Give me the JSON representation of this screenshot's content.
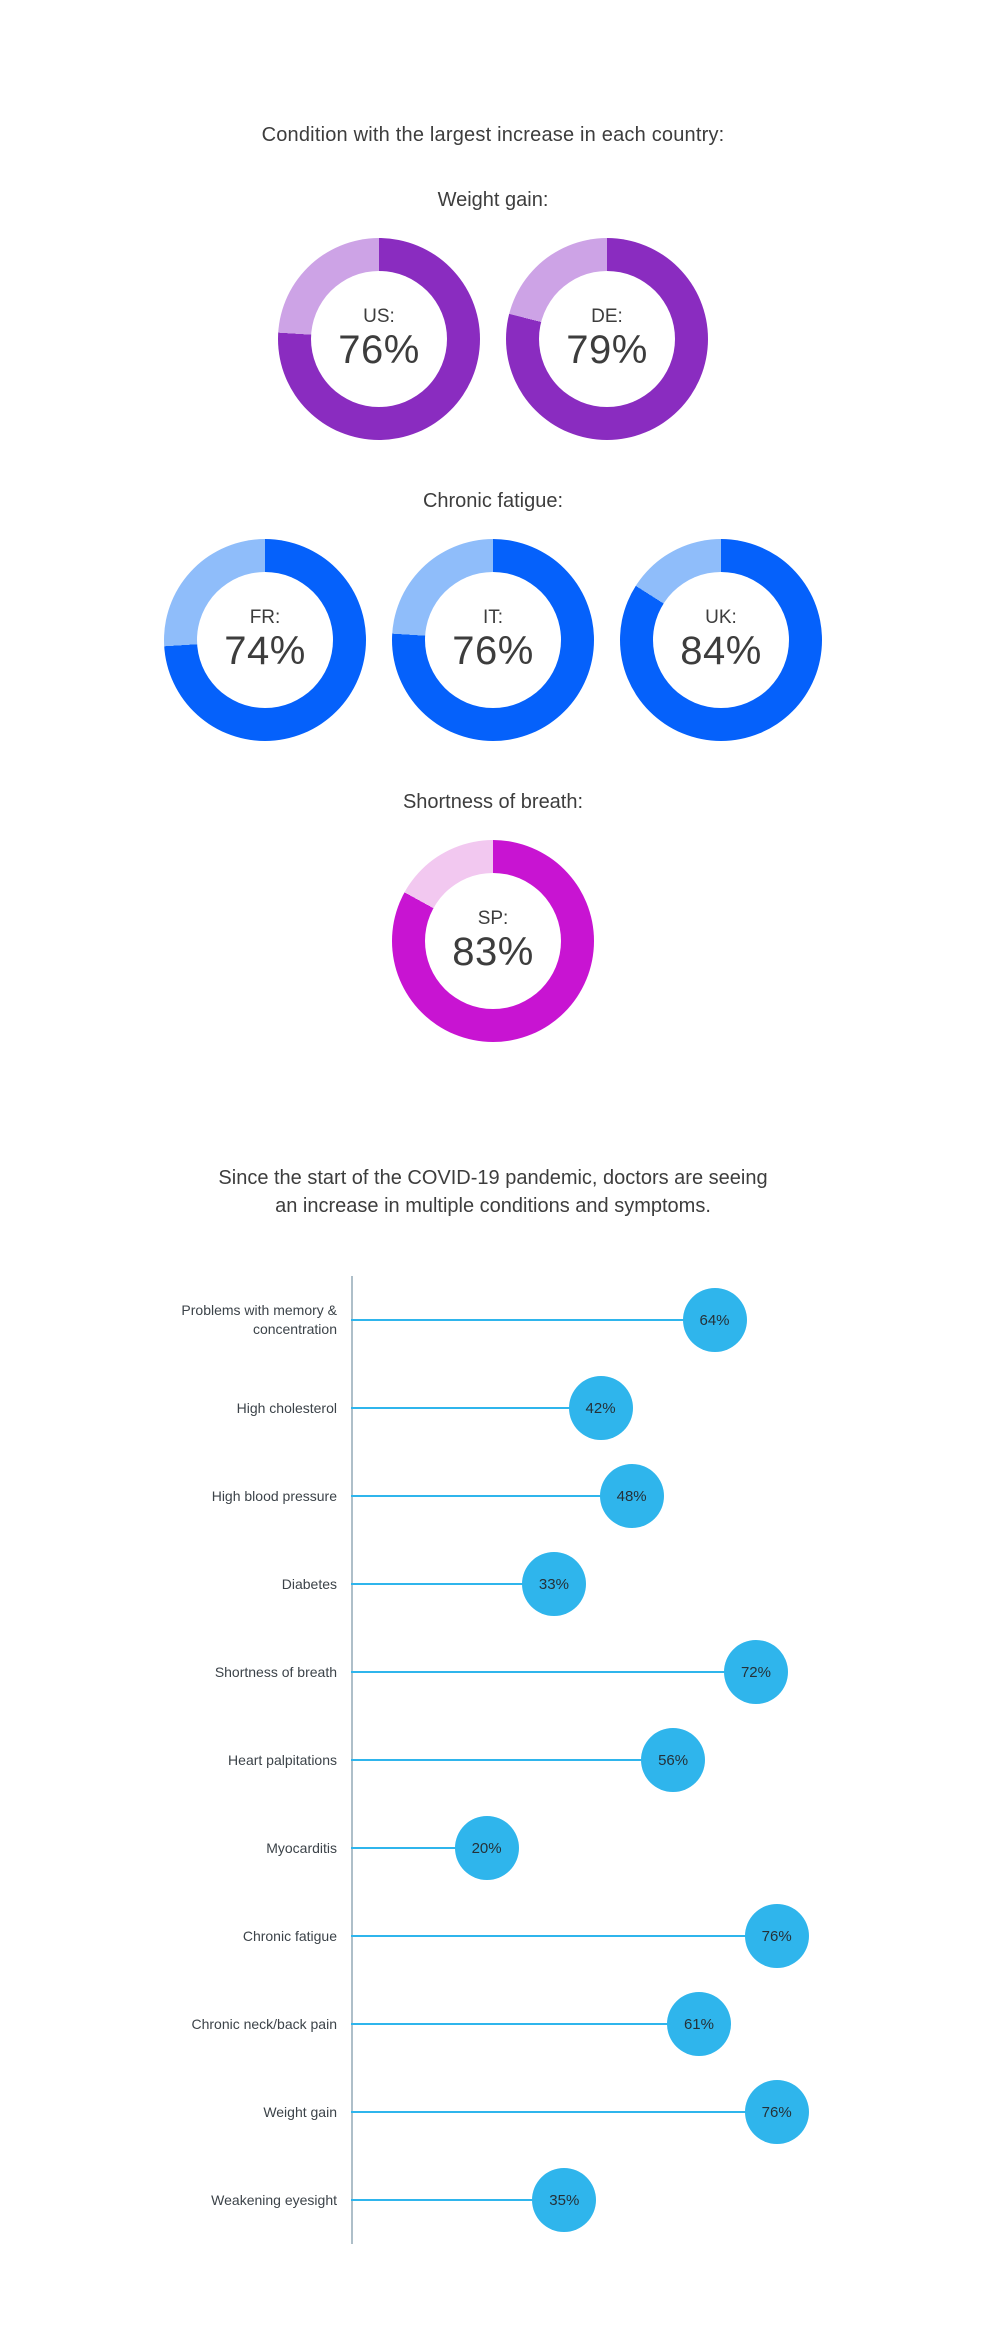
{
  "chart_data": [
    {
      "type": "donut",
      "title": "Condition with the largest increase in each country:",
      "unit": "%",
      "groups": [
        {
          "condition": "Weight gain:",
          "color": "#8a2cc0",
          "track_color": "#cda3e6",
          "items": [
            {
              "label": "US:",
              "value": 76
            },
            {
              "label": "DE:",
              "value": 79
            }
          ]
        },
        {
          "condition": "Chronic fatigue:",
          "color": "#0561fb",
          "track_color": "#8fbdfa",
          "items": [
            {
              "label": "FR:",
              "value": 74
            },
            {
              "label": "IT:",
              "value": 76
            },
            {
              "label": "UK:",
              "value": 84
            }
          ]
        },
        {
          "condition": "Shortness of breath:",
          "color": "#c814d2",
          "track_color": "#f2c8f0",
          "items": [
            {
              "label": "SP:",
              "value": 83
            }
          ]
        }
      ]
    },
    {
      "type": "lollipop",
      "title": "Since the start of the COVID-19 pandemic, doctors are seeing an increase in multiple conditions and symptoms.",
      "title_lines": [
        "Since the start of the COVID-19 pandemic, doctors are seeing",
        "an increase in multiple conditions and symptoms."
      ],
      "categories": [
        "Problems with memory & concentration",
        "High cholesterol",
        "High blood pressure",
        "Diabetes",
        "Shortness of breath",
        "Heart palpitations",
        "Myocarditis",
        "Chronic fatigue",
        "Chronic neck/back pain",
        "Weight gain",
        "Weakening eyesight"
      ],
      "values": [
        64,
        42,
        48,
        33,
        72,
        56,
        20,
        76,
        61,
        76,
        35
      ],
      "unit": "%",
      "accent_color": "#2fb5ec",
      "axis_color": "#aebfc9",
      "xlim": [
        0,
        100
      ],
      "legend": "none",
      "grid": "off"
    }
  ]
}
